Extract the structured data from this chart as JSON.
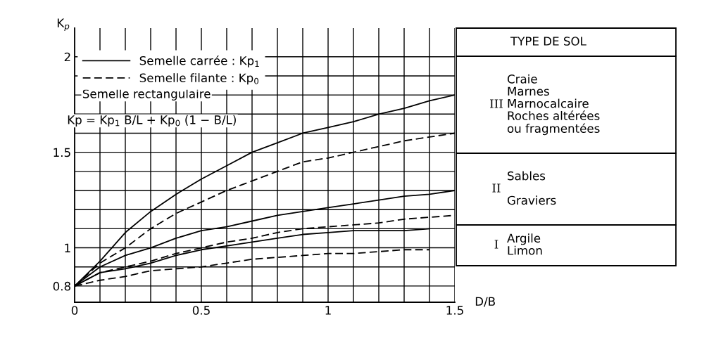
{
  "chart_data": {
    "type": "line",
    "xlabel": "D/B",
    "ylabel": "K$_{p}$",
    "x": [
      0,
      0.1,
      0.2,
      0.3,
      0.4,
      0.5,
      0.6,
      0.7,
      0.8,
      0.9,
      1.0,
      1.1,
      1.2,
      1.3,
      1.4,
      1.5
    ],
    "series": [
      {
        "name": "Semelle carrée : Kp$_{1}$",
        "color": "#000000",
        "line_style": "solid",
        "values": [
          0.8,
          0.93,
          1.08,
          1.19,
          1.28,
          1.36,
          1.43,
          1.5,
          1.55,
          1.6,
          1.63,
          1.66,
          1.7,
          1.73,
          1.77,
          1.8
        ]
      },
      {
        "name": "Semelle filante : Kp$_{0}$",
        "color": "#000000",
        "line_style": "dashed",
        "values": [
          0.8,
          0.92,
          1.0,
          1.1,
          1.18,
          1.24,
          1.3,
          1.35,
          1.4,
          1.45,
          1.47,
          1.5,
          1.53,
          1.56,
          1.58,
          1.6
        ]
      },
      {
        "color": "#000000",
        "line_style": "solid",
        "values": [
          0.8,
          0.9,
          0.96,
          1.0,
          1.05,
          1.09,
          1.11,
          1.14,
          1.17,
          1.19,
          1.21,
          1.23,
          1.25,
          1.27,
          1.28,
          1.3
        ]
      },
      {
        "color": "#000000",
        "line_style": "dashed",
        "values": [
          0.8,
          0.87,
          0.9,
          0.93,
          0.97,
          1.0,
          1.03,
          1.05,
          1.08,
          1.1,
          1.11,
          1.12,
          1.13,
          1.15,
          1.16,
          1.17
        ]
      },
      {
        "color": "#000000",
        "line_style": "solid",
        "values": [
          0.8,
          0.87,
          0.89,
          0.92,
          0.96,
          0.99,
          1.01,
          1.03,
          1.05,
          1.07,
          1.08,
          1.09,
          1.09,
          1.09,
          1.1,
          null
        ]
      },
      {
        "color": "#000000",
        "line_style": "dashed",
        "values": [
          0.8,
          0.83,
          0.85,
          0.88,
          0.89,
          0.9,
          0.92,
          0.94,
          0.95,
          0.96,
          0.97,
          0.97,
          0.98,
          0.99,
          0.99,
          null
        ]
      }
    ],
    "xlim": [
      0,
      1.5
    ],
    "xticks": [
      0,
      {
        "value": 0.1,
        "label": null
      },
      {
        "value": 0.2,
        "label": null
      },
      {
        "value": 0.3,
        "label": null
      },
      {
        "value": 0.4,
        "label": null
      },
      0.5,
      {
        "value": 0.6,
        "label": null
      },
      {
        "value": 0.7,
        "label": null
      },
      {
        "value": 0.8,
        "label": null
      },
      {
        "value": 0.9,
        "label": null
      },
      1,
      {
        "value": 1.1,
        "label": null
      },
      {
        "value": 1.2,
        "label": null
      },
      {
        "value": 1.3,
        "label": null
      },
      {
        "value": 1.4,
        "label": null
      },
      1.5
    ],
    "ylim": [
      0.715,
      2.15
    ],
    "yticks": [
      0.8,
      {
        "value": 0.9,
        "label": null
      },
      1,
      {
        "value": 1.1,
        "label": null
      },
      {
        "value": 1.2,
        "label": null
      },
      {
        "value": 1.3,
        "label": null
      },
      {
        "value": 1.4,
        "label": null
      },
      1.5,
      {
        "value": 1.6,
        "label": null
      },
      {
        "value": 1.7,
        "label": null
      },
      {
        "value": 1.8,
        "label": null
      },
      {
        "value": 1.9,
        "label": null
      },
      2
    ],
    "grid": true,
    "legend": "top left",
    "annotations": [
      "Semelle rectangulaire",
      "Kp = Kp$_{1}$ B/L + Kp$_{0}$ (1 − B/L)",
      "TYPE DE SOL",
      "III",
      "Craie\nMarnes\nMarnocalcaire\nRoches altérées\nou fragmentées",
      "II",
      "Sables\n\nGraviers",
      "I",
      "Argile\nLimon"
    ]
  }
}
